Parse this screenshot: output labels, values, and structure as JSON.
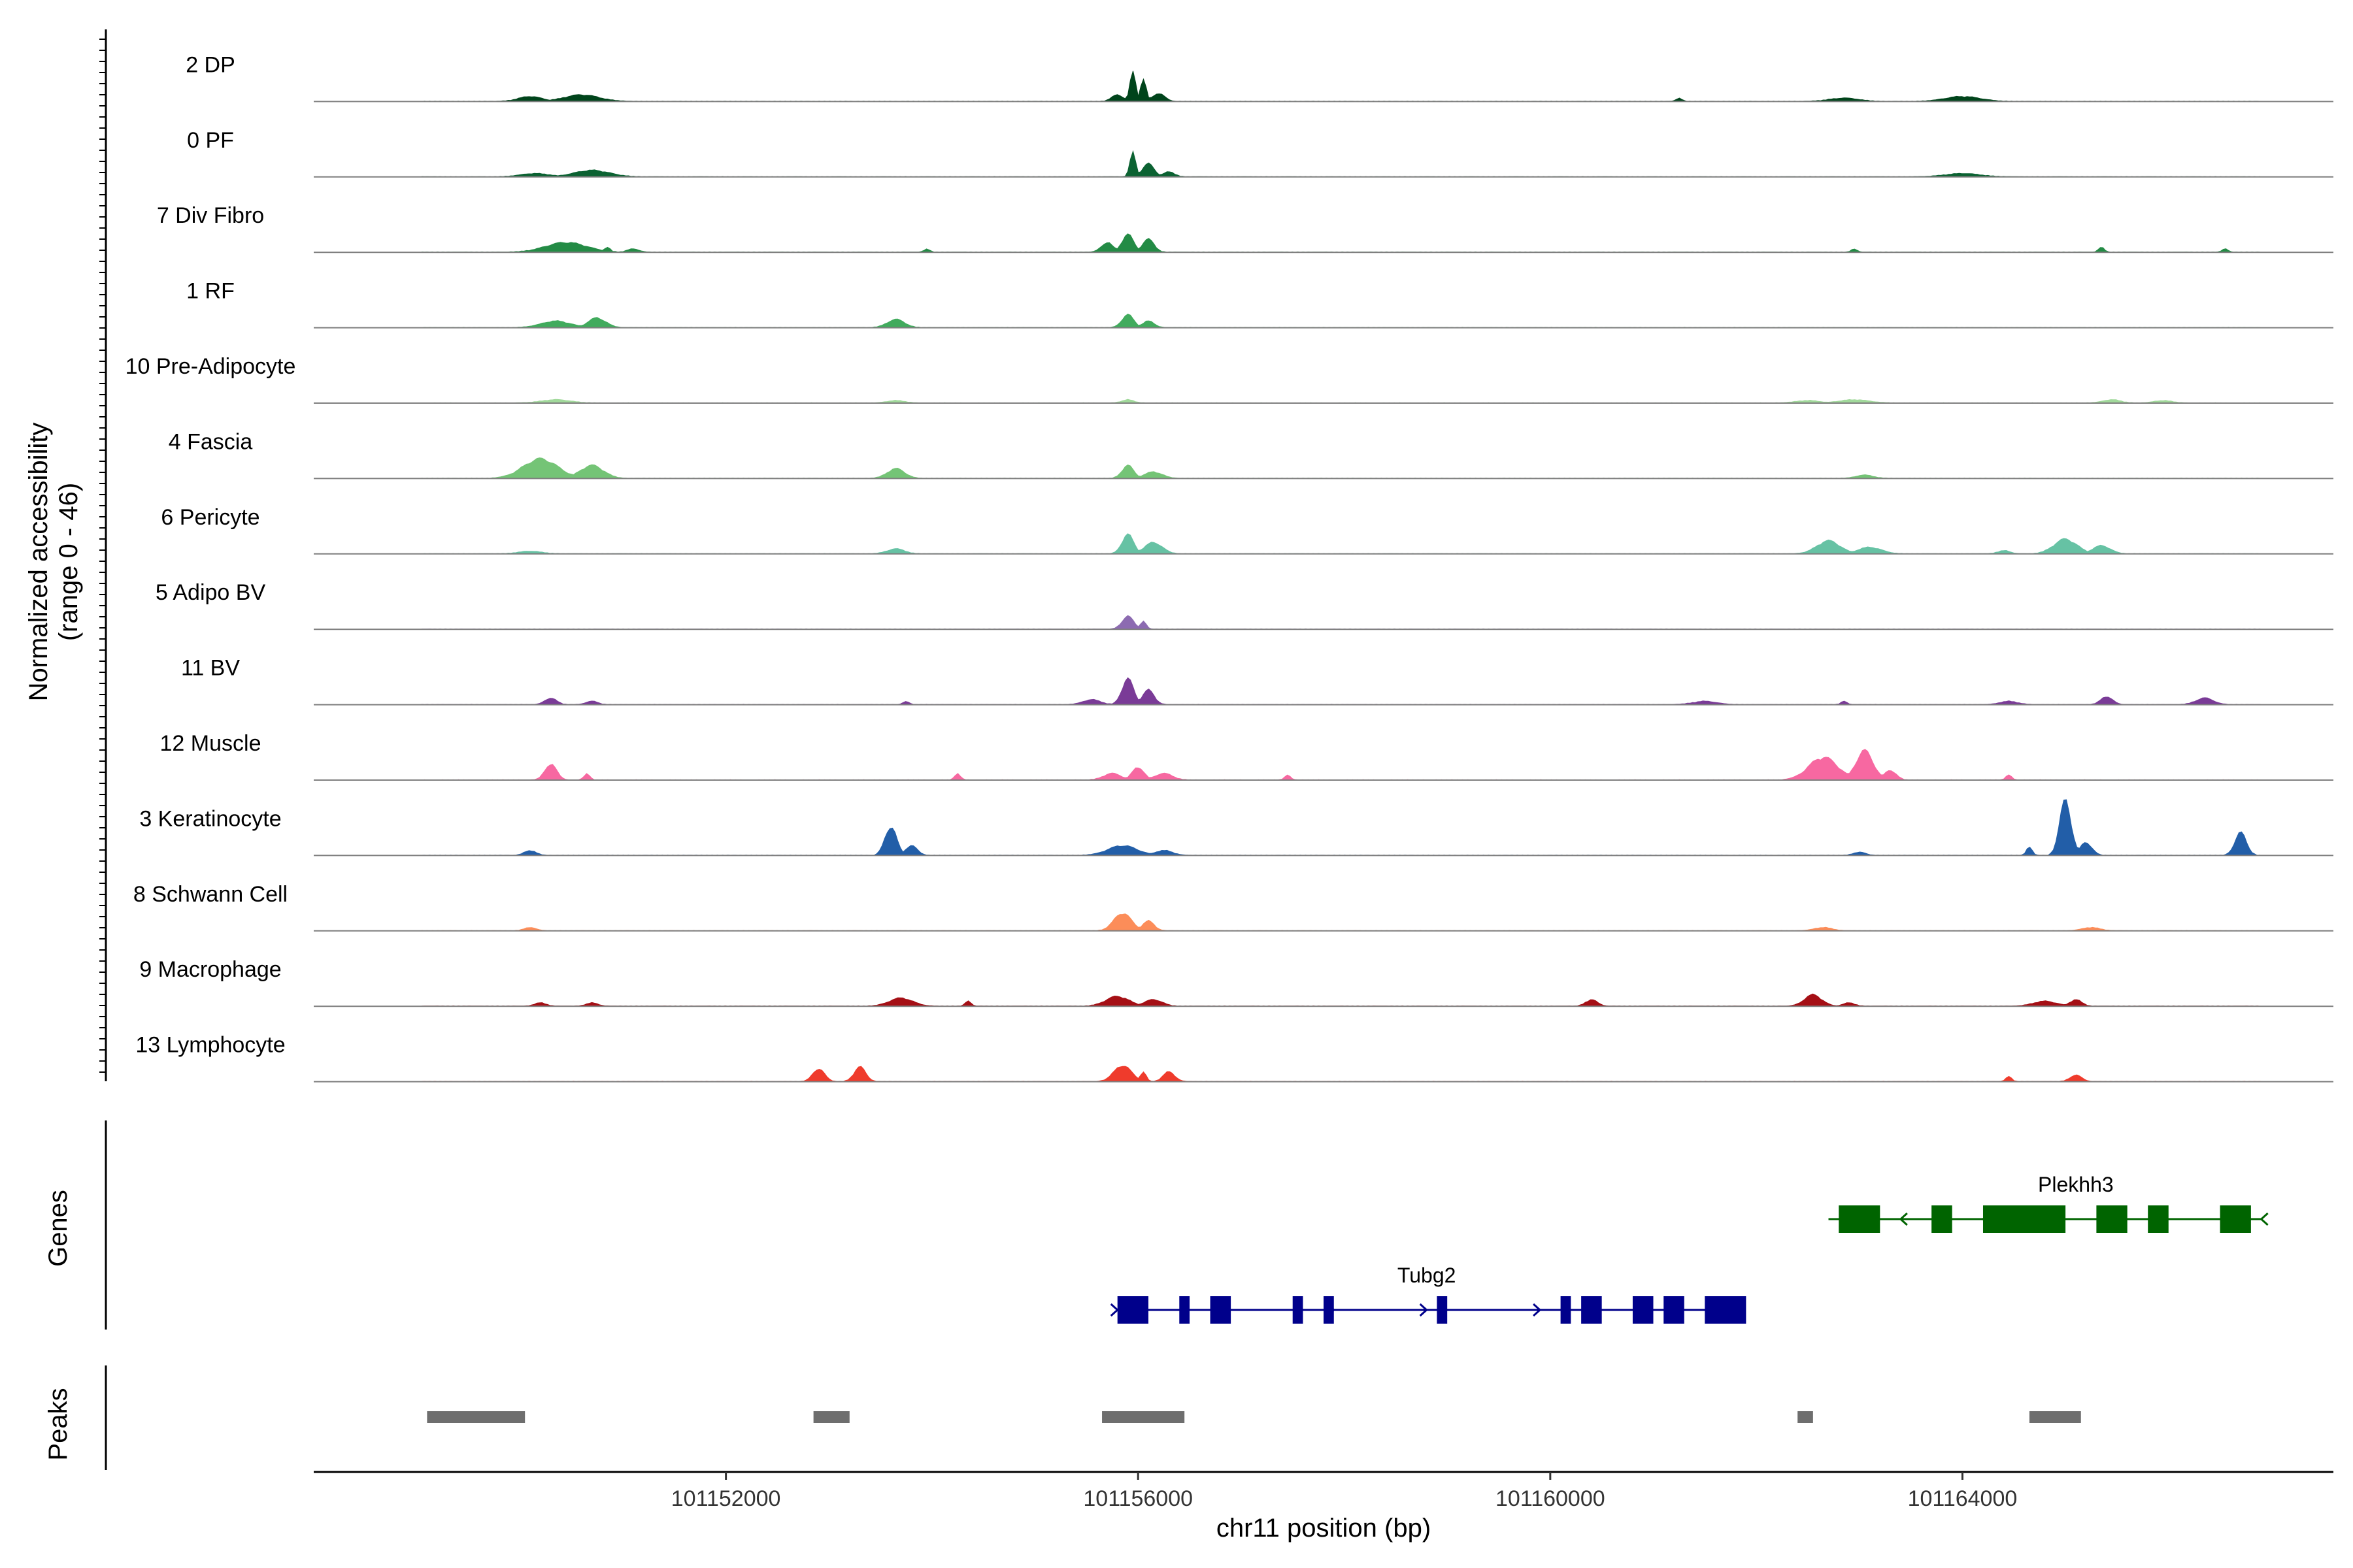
{
  "chart_data": {
    "type": "area",
    "chromosome": "chr11",
    "xlabel": "chr11 position (bp)",
    "ylabel": "Normalized accessibility\n(range 0 - 46)",
    "ylabel_lines": [
      "Normalized accessibility",
      "(range 0 - 46)"
    ],
    "y_range": [
      0,
      46
    ],
    "x_range": [
      101148000,
      101167600
    ],
    "x_ticks": [
      101152000,
      101156000,
      101160000,
      101164000
    ],
    "x_tick_labels": [
      "101152000",
      "101156000",
      "101160000",
      "101164000"
    ],
    "grid": false,
    "legend": "none",
    "tracks": [
      {
        "label": "2 DP",
        "color": "#00441b",
        "peaks": [
          [
            101149900,
            101150300,
            3
          ],
          [
            101150300,
            101150900,
            4
          ],
          [
            101155900,
            101156000,
            18
          ],
          [
            101156000,
            101156100,
            14
          ],
          [
            101156100,
            101156300,
            5
          ],
          [
            101155700,
            101155900,
            4
          ],
          [
            101163700,
            101164300,
            3
          ],
          [
            101162600,
            101163100,
            2
          ],
          [
            101161200,
            101161300,
            2
          ]
        ]
      },
      {
        "label": "0 PF",
        "color": "#0b6232",
        "peaks": [
          [
            101149900,
            101150400,
            2
          ],
          [
            101150400,
            101151000,
            4
          ],
          [
            101155900,
            101156000,
            15
          ],
          [
            101156000,
            101156200,
            8
          ],
          [
            101156200,
            101156400,
            3
          ],
          [
            101163700,
            101164300,
            2
          ]
        ]
      },
      {
        "label": "7 Div Fibro",
        "color": "#238b45",
        "peaks": [
          [
            101150100,
            101150800,
            6
          ],
          [
            101150800,
            101150900,
            3
          ],
          [
            101151000,
            101151200,
            2
          ],
          [
            101155600,
            101155800,
            6
          ],
          [
            101155800,
            101156000,
            11
          ],
          [
            101156000,
            101156200,
            8
          ],
          [
            101153900,
            101154000,
            2
          ],
          [
            101162900,
            101163000,
            2
          ],
          [
            101165300,
            101165400,
            3
          ],
          [
            101166500,
            101166600,
            2
          ]
        ]
      },
      {
        "label": "1 RF",
        "color": "#41ab5d",
        "peaks": [
          [
            101150100,
            101150600,
            4
          ],
          [
            101150600,
            101150900,
            6
          ],
          [
            101153500,
            101153800,
            5
          ],
          [
            101155800,
            101156000,
            8
          ],
          [
            101156000,
            101156200,
            4
          ]
        ]
      },
      {
        "label": "10 Pre-Adipocyte",
        "color": "#a1d99b",
        "peaks": [
          [
            101150100,
            101150600,
            2
          ],
          [
            101153500,
            101153800,
            1.5
          ],
          [
            101155800,
            101156000,
            2
          ],
          [
            101162300,
            101162700,
            1.5
          ],
          [
            101162700,
            101163200,
            2
          ],
          [
            101165300,
            101165600,
            2
          ],
          [
            101165800,
            101166100,
            1.5
          ]
        ]
      },
      {
        "label": "4 Fascia",
        "color": "#74c476",
        "peaks": [
          [
            101149900,
            101150500,
            12
          ],
          [
            101150500,
            101150900,
            8
          ],
          [
            101153500,
            101153800,
            6
          ],
          [
            101155800,
            101156000,
            8
          ],
          [
            101156000,
            101156300,
            4
          ],
          [
            101162900,
            101163200,
            2
          ]
        ]
      },
      {
        "label": "6 Pericyte",
        "color": "#66c2a4",
        "peaks": [
          [
            101149900,
            101150300,
            1.5
          ],
          [
            101153500,
            101153800,
            3
          ],
          [
            101155800,
            101156000,
            12
          ],
          [
            101156000,
            101156300,
            7
          ],
          [
            101162500,
            101162900,
            8
          ],
          [
            101162900,
            101163300,
            4
          ],
          [
            101164800,
            101165200,
            9
          ],
          [
            101165200,
            101165500,
            5
          ],
          [
            101164300,
            101164500,
            2
          ]
        ]
      },
      {
        "label": "5 Adipo BV",
        "color": "#8c6bb1",
        "peaks": [
          [
            101155800,
            101156000,
            8
          ],
          [
            101156000,
            101156100,
            5
          ]
        ]
      },
      {
        "label": "11 BV",
        "color": "#7a3b97",
        "peaks": [
          [
            101150200,
            101150400,
            4
          ],
          [
            101150600,
            101150800,
            2
          ],
          [
            101153700,
            101153800,
            2
          ],
          [
            101155400,
            101155700,
            3
          ],
          [
            101155800,
            101156000,
            16
          ],
          [
            101156000,
            101156200,
            9
          ],
          [
            101161300,
            101161700,
            2
          ],
          [
            101162800,
            101162900,
            2
          ],
          [
            101164300,
            101164600,
            2
          ],
          [
            101165300,
            101165500,
            5
          ],
          [
            101166200,
            101166500,
            4
          ]
        ]
      },
      {
        "label": "12 Muscle",
        "color": "#f768a1",
        "peaks": [
          [
            101150200,
            101150400,
            10
          ],
          [
            101150600,
            101150700,
            4
          ],
          [
            101154200,
            101154300,
            4
          ],
          [
            101155600,
            101155900,
            4
          ],
          [
            101155900,
            101156100,
            8
          ],
          [
            101156100,
            101156400,
            4
          ],
          [
            101157400,
            101157500,
            3
          ],
          [
            101162400,
            101162900,
            14
          ],
          [
            101162900,
            101163200,
            18
          ],
          [
            101163200,
            101163400,
            6
          ],
          [
            101164400,
            101164500,
            3
          ]
        ]
      },
      {
        "label": "3 Keratinocyte",
        "color": "#225ea8",
        "peaks": [
          [
            101150000,
            101150200,
            3
          ],
          [
            101153500,
            101153700,
            18
          ],
          [
            101153700,
            101153900,
            6
          ],
          [
            101155600,
            101156100,
            6
          ],
          [
            101156100,
            101156400,
            3
          ],
          [
            101164900,
            101165100,
            34
          ],
          [
            101165100,
            101165300,
            8
          ],
          [
            101164600,
            101164700,
            5
          ],
          [
            101166600,
            101166800,
            14
          ],
          [
            101162900,
            101163100,
            2
          ]
        ]
      },
      {
        "label": "8 Schwann Cell",
        "color": "#fc8d59",
        "peaks": [
          [
            101150000,
            101150200,
            2
          ],
          [
            101155700,
            101156000,
            11
          ],
          [
            101156000,
            101156200,
            6
          ],
          [
            101162500,
            101162800,
            2
          ],
          [
            101165100,
            101165400,
            2
          ]
        ]
      },
      {
        "label": "9 Macrophage",
        "color": "#a50f15",
        "peaks": [
          [
            101150100,
            101150300,
            2
          ],
          [
            101150600,
            101150800,
            2
          ],
          [
            101153500,
            101153900,
            5
          ],
          [
            101154300,
            101154400,
            3
          ],
          [
            101155600,
            101156000,
            6
          ],
          [
            101156000,
            101156300,
            4
          ],
          [
            101160300,
            101160500,
            4
          ],
          [
            101162400,
            101162700,
            7
          ],
          [
            101162800,
            101163000,
            2
          ],
          [
            101164600,
            101165000,
            3
          ],
          [
            101165000,
            101165200,
            4
          ]
        ]
      },
      {
        "label": "13 Lymphocyte",
        "color": "#ef3b2c",
        "peaks": [
          [
            101152800,
            101153000,
            8
          ],
          [
            101153200,
            101153400,
            9
          ],
          [
            101155700,
            101156000,
            10
          ],
          [
            101156000,
            101156100,
            6
          ],
          [
            101156200,
            101156400,
            6
          ],
          [
            101164400,
            101164500,
            3
          ],
          [
            101165000,
            101165200,
            4
          ]
        ]
      }
    ],
    "genes_panel_label": "Genes",
    "genes": [
      {
        "name": "Plekhh3",
        "color": "#006400",
        "strand": "-",
        "start": 101162700,
        "end": 101166900,
        "exons": [
          [
            101162800,
            101163200
          ],
          [
            101163700,
            101163900
          ],
          [
            101164200,
            101165000
          ],
          [
            101165300,
            101165600
          ],
          [
            101165800,
            101166000
          ],
          [
            101166500,
            101166800
          ]
        ]
      },
      {
        "name": "Tubg2",
        "color": "#00008b",
        "strand": "+",
        "start": 101155800,
        "end": 101161800,
        "exons": [
          [
            101155800,
            101156100
          ],
          [
            101156400,
            101156500
          ],
          [
            101156700,
            101156900
          ],
          [
            101157500,
            101157600
          ],
          [
            101157800,
            101157900
          ],
          [
            101158900,
            101159000
          ],
          [
            101160100,
            101160200
          ],
          [
            101160300,
            101160500
          ],
          [
            101160800,
            101161000
          ],
          [
            101161100,
            101161300
          ],
          [
            101161500,
            101161900
          ]
        ]
      }
    ],
    "peaks_panel_label": "Peaks",
    "peak_regions": [
      [
        101149100,
        101150050
      ],
      [
        101152850,
        101153200
      ],
      [
        101155650,
        101156450
      ],
      [
        101162400,
        101162550
      ],
      [
        101164650,
        101165150
      ]
    ],
    "peak_color": "#6e6e6e"
  }
}
